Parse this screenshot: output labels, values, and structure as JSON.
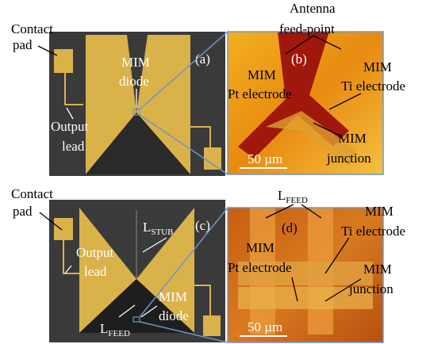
{
  "panels": [
    {
      "label": "(a)",
      "annotations": [
        "Contact",
        "pad",
        "MIM",
        "diode",
        "Output",
        "lead"
      ]
    },
    {
      "label": "(b)",
      "annotations": [
        "Antenna",
        "feed-point",
        "MIM",
        "Pt electrode",
        "MIM",
        "Ti electrode",
        "MIM",
        "junction"
      ],
      "scale": "50 µm"
    },
    {
      "label": "(c)",
      "annotations": [
        "Contact",
        "pad",
        "Output",
        "lead",
        "MIM",
        "diode"
      ],
      "stub": {
        "main": "L",
        "sub": "STUB"
      },
      "feed": {
        "main": "L",
        "sub": "FEED"
      }
    },
    {
      "label": "(d)",
      "annotations": [
        "MIM",
        "Pt electrode",
        "MIM",
        "Ti electrode",
        "MIM",
        "junction"
      ],
      "feed": {
        "main": "L",
        "sub": "FEED"
      },
      "scale": "50 µm"
    }
  ]
}
